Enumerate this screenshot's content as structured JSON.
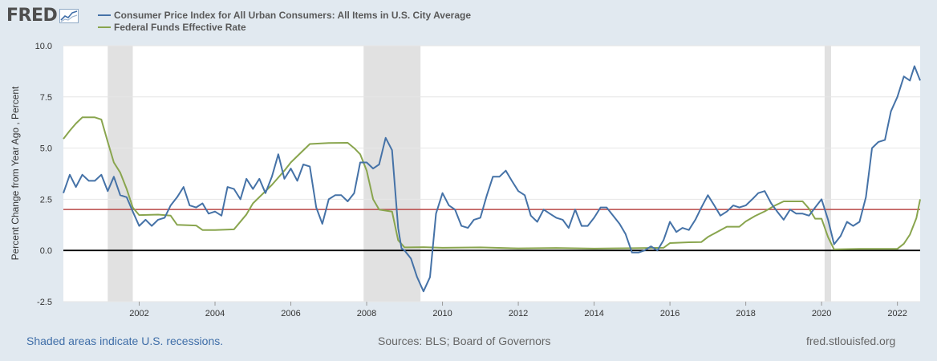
{
  "logo": {
    "text": "FRED",
    "icon": "line-chart-icon"
  },
  "legend": [
    {
      "label": "Consumer Price Index for All Urban Consumers: All Items in U.S. City Average",
      "color": "#4572a7"
    },
    {
      "label": "Federal Funds Effective Rate",
      "color": "#89a54e"
    }
  ],
  "footer": {
    "recession_note": "Shaded areas indicate U.S. recessions.",
    "sources": "Sources: BLS; Board of Governors",
    "site": "fred.stlouisfed.org"
  },
  "chart_data": {
    "type": "line",
    "ylabel": "Percent Change from Year Ago , Percent",
    "xlim": [
      2000.0,
      2022.6
    ],
    "ylim": [
      -2.5,
      10.0
    ],
    "x_ticks": [
      2002,
      2004,
      2006,
      2008,
      2010,
      2012,
      2014,
      2016,
      2018,
      2020,
      2022
    ],
    "y_ticks": [
      -2.5,
      0.0,
      2.5,
      5.0,
      7.5,
      10.0
    ],
    "y_tick_labels": [
      "-2.5",
      "0.0",
      "2.5",
      "5.0",
      "7.5",
      "10.0"
    ],
    "grid": "horizontal",
    "recessions": [
      [
        2001.17,
        2001.83
      ],
      [
        2007.92,
        2009.42
      ],
      [
        2020.08,
        2020.25
      ]
    ],
    "reference_lines": [
      {
        "y": 2.0,
        "color": "#b94a48"
      },
      {
        "y": 0.0,
        "color": "#000000"
      }
    ],
    "series": [
      {
        "name": "Consumer Price Index for All Urban Consumers: All Items in U.S. City Average",
        "color": "#4572a7",
        "points": [
          [
            2000.0,
            2.8
          ],
          [
            2000.17,
            3.7
          ],
          [
            2000.33,
            3.1
          ],
          [
            2000.5,
            3.7
          ],
          [
            2000.67,
            3.4
          ],
          [
            2000.83,
            3.4
          ],
          [
            2001.0,
            3.7
          ],
          [
            2001.17,
            2.9
          ],
          [
            2001.33,
            3.6
          ],
          [
            2001.5,
            2.7
          ],
          [
            2001.67,
            2.6
          ],
          [
            2001.83,
            1.9
          ],
          [
            2002.0,
            1.2
          ],
          [
            2002.17,
            1.5
          ],
          [
            2002.33,
            1.2
          ],
          [
            2002.5,
            1.5
          ],
          [
            2002.67,
            1.6
          ],
          [
            2002.83,
            2.2
          ],
          [
            2003.0,
            2.6
          ],
          [
            2003.17,
            3.1
          ],
          [
            2003.33,
            2.2
          ],
          [
            2003.5,
            2.1
          ],
          [
            2003.67,
            2.3
          ],
          [
            2003.83,
            1.8
          ],
          [
            2004.0,
            1.9
          ],
          [
            2004.17,
            1.7
          ],
          [
            2004.33,
            3.1
          ],
          [
            2004.5,
            3.0
          ],
          [
            2004.67,
            2.5
          ],
          [
            2004.83,
            3.5
          ],
          [
            2005.0,
            3.0
          ],
          [
            2005.17,
            3.5
          ],
          [
            2005.33,
            2.8
          ],
          [
            2005.5,
            3.6
          ],
          [
            2005.67,
            4.7
          ],
          [
            2005.83,
            3.5
          ],
          [
            2006.0,
            4.0
          ],
          [
            2006.17,
            3.4
          ],
          [
            2006.33,
            4.2
          ],
          [
            2006.5,
            4.1
          ],
          [
            2006.67,
            2.1
          ],
          [
            2006.83,
            1.3
          ],
          [
            2007.0,
            2.5
          ],
          [
            2007.17,
            2.7
          ],
          [
            2007.33,
            2.7
          ],
          [
            2007.5,
            2.4
          ],
          [
            2007.67,
            2.8
          ],
          [
            2007.83,
            4.3
          ],
          [
            2008.0,
            4.3
          ],
          [
            2008.17,
            4.0
          ],
          [
            2008.33,
            4.2
          ],
          [
            2008.5,
            5.5
          ],
          [
            2008.67,
            4.9
          ],
          [
            2008.83,
            1.1
          ],
          [
            2008.92,
            0.1
          ],
          [
            2009.0,
            0.0
          ],
          [
            2009.17,
            -0.4
          ],
          [
            2009.33,
            -1.3
          ],
          [
            2009.5,
            -2.0
          ],
          [
            2009.67,
            -1.3
          ],
          [
            2009.83,
            1.8
          ],
          [
            2010.0,
            2.8
          ],
          [
            2010.17,
            2.2
          ],
          [
            2010.33,
            2.0
          ],
          [
            2010.5,
            1.2
          ],
          [
            2010.67,
            1.1
          ],
          [
            2010.83,
            1.5
          ],
          [
            2011.0,
            1.6
          ],
          [
            2011.17,
            2.7
          ],
          [
            2011.33,
            3.6
          ],
          [
            2011.5,
            3.6
          ],
          [
            2011.67,
            3.9
          ],
          [
            2011.83,
            3.4
          ],
          [
            2012.0,
            2.9
          ],
          [
            2012.17,
            2.7
          ],
          [
            2012.33,
            1.7
          ],
          [
            2012.5,
            1.4
          ],
          [
            2012.67,
            2.0
          ],
          [
            2012.83,
            1.8
          ],
          [
            2013.0,
            1.6
          ],
          [
            2013.17,
            1.5
          ],
          [
            2013.33,
            1.1
          ],
          [
            2013.5,
            2.0
          ],
          [
            2013.67,
            1.2
          ],
          [
            2013.83,
            1.2
          ],
          [
            2014.0,
            1.6
          ],
          [
            2014.17,
            2.1
          ],
          [
            2014.33,
            2.1
          ],
          [
            2014.5,
            1.7
          ],
          [
            2014.67,
            1.3
          ],
          [
            2014.83,
            0.8
          ],
          [
            2015.0,
            -0.1
          ],
          [
            2015.17,
            -0.1
          ],
          [
            2015.33,
            0.0
          ],
          [
            2015.5,
            0.2
          ],
          [
            2015.67,
            0.0
          ],
          [
            2015.83,
            0.5
          ],
          [
            2016.0,
            1.4
          ],
          [
            2016.17,
            0.9
          ],
          [
            2016.33,
            1.1
          ],
          [
            2016.5,
            1.0
          ],
          [
            2016.67,
            1.5
          ],
          [
            2016.83,
            2.1
          ],
          [
            2017.0,
            2.7
          ],
          [
            2017.17,
            2.2
          ],
          [
            2017.33,
            1.7
          ],
          [
            2017.5,
            1.9
          ],
          [
            2017.67,
            2.2
          ],
          [
            2017.83,
            2.1
          ],
          [
            2018.0,
            2.2
          ],
          [
            2018.17,
            2.5
          ],
          [
            2018.33,
            2.8
          ],
          [
            2018.5,
            2.9
          ],
          [
            2018.67,
            2.3
          ],
          [
            2018.83,
            1.9
          ],
          [
            2019.0,
            1.5
          ],
          [
            2019.17,
            2.0
          ],
          [
            2019.33,
            1.8
          ],
          [
            2019.5,
            1.8
          ],
          [
            2019.67,
            1.7
          ],
          [
            2019.83,
            2.1
          ],
          [
            2020.0,
            2.5
          ],
          [
            2020.17,
            1.5
          ],
          [
            2020.33,
            0.3
          ],
          [
            2020.5,
            0.7
          ],
          [
            2020.67,
            1.4
          ],
          [
            2020.83,
            1.2
          ],
          [
            2021.0,
            1.4
          ],
          [
            2021.17,
            2.6
          ],
          [
            2021.33,
            5.0
          ],
          [
            2021.5,
            5.3
          ],
          [
            2021.67,
            5.4
          ],
          [
            2021.83,
            6.8
          ],
          [
            2022.0,
            7.5
          ],
          [
            2022.17,
            8.5
          ],
          [
            2022.33,
            8.3
          ],
          [
            2022.45,
            9.0
          ],
          [
            2022.6,
            8.3
          ]
        ]
      },
      {
        "name": "Federal Funds Effective Rate",
        "color": "#89a54e",
        "points": [
          [
            2000.0,
            5.45
          ],
          [
            2000.17,
            5.85
          ],
          [
            2000.33,
            6.2
          ],
          [
            2000.5,
            6.5
          ],
          [
            2000.67,
            6.5
          ],
          [
            2000.83,
            6.5
          ],
          [
            2001.0,
            6.4
          ],
          [
            2001.17,
            5.3
          ],
          [
            2001.33,
            4.3
          ],
          [
            2001.5,
            3.8
          ],
          [
            2001.67,
            3.0
          ],
          [
            2001.83,
            2.1
          ],
          [
            2002.0,
            1.73
          ],
          [
            2002.5,
            1.75
          ],
          [
            2002.83,
            1.7
          ],
          [
            2003.0,
            1.25
          ],
          [
            2003.5,
            1.22
          ],
          [
            2003.67,
            1.0
          ],
          [
            2004.0,
            1.0
          ],
          [
            2004.5,
            1.03
          ],
          [
            2004.83,
            1.76
          ],
          [
            2005.0,
            2.3
          ],
          [
            2005.5,
            3.2
          ],
          [
            2005.83,
            3.9
          ],
          [
            2006.0,
            4.3
          ],
          [
            2006.5,
            5.2
          ],
          [
            2007.0,
            5.25
          ],
          [
            2007.5,
            5.26
          ],
          [
            2007.67,
            5.0
          ],
          [
            2007.83,
            4.7
          ],
          [
            2008.0,
            3.9
          ],
          [
            2008.17,
            2.5
          ],
          [
            2008.33,
            2.0
          ],
          [
            2008.67,
            1.9
          ],
          [
            2008.83,
            0.5
          ],
          [
            2009.0,
            0.15
          ],
          [
            2009.5,
            0.16
          ],
          [
            2010.0,
            0.13
          ],
          [
            2011.0,
            0.15
          ],
          [
            2012.0,
            0.1
          ],
          [
            2013.0,
            0.12
          ],
          [
            2014.0,
            0.09
          ],
          [
            2015.0,
            0.11
          ],
          [
            2015.83,
            0.13
          ],
          [
            2016.0,
            0.36
          ],
          [
            2016.5,
            0.4
          ],
          [
            2016.83,
            0.41
          ],
          [
            2017.0,
            0.66
          ],
          [
            2017.25,
            0.91
          ],
          [
            2017.5,
            1.16
          ],
          [
            2017.83,
            1.16
          ],
          [
            2018.0,
            1.42
          ],
          [
            2018.25,
            1.69
          ],
          [
            2018.5,
            1.91
          ],
          [
            2018.75,
            2.18
          ],
          [
            2019.0,
            2.4
          ],
          [
            2019.5,
            2.4
          ],
          [
            2019.67,
            2.04
          ],
          [
            2019.83,
            1.55
          ],
          [
            2020.0,
            1.55
          ],
          [
            2020.17,
            0.65
          ],
          [
            2020.33,
            0.05
          ],
          [
            2021.0,
            0.08
          ],
          [
            2021.83,
            0.08
          ],
          [
            2022.0,
            0.08
          ],
          [
            2022.17,
            0.33
          ],
          [
            2022.33,
            0.77
          ],
          [
            2022.5,
            1.58
          ],
          [
            2022.6,
            2.5
          ]
        ]
      }
    ]
  }
}
